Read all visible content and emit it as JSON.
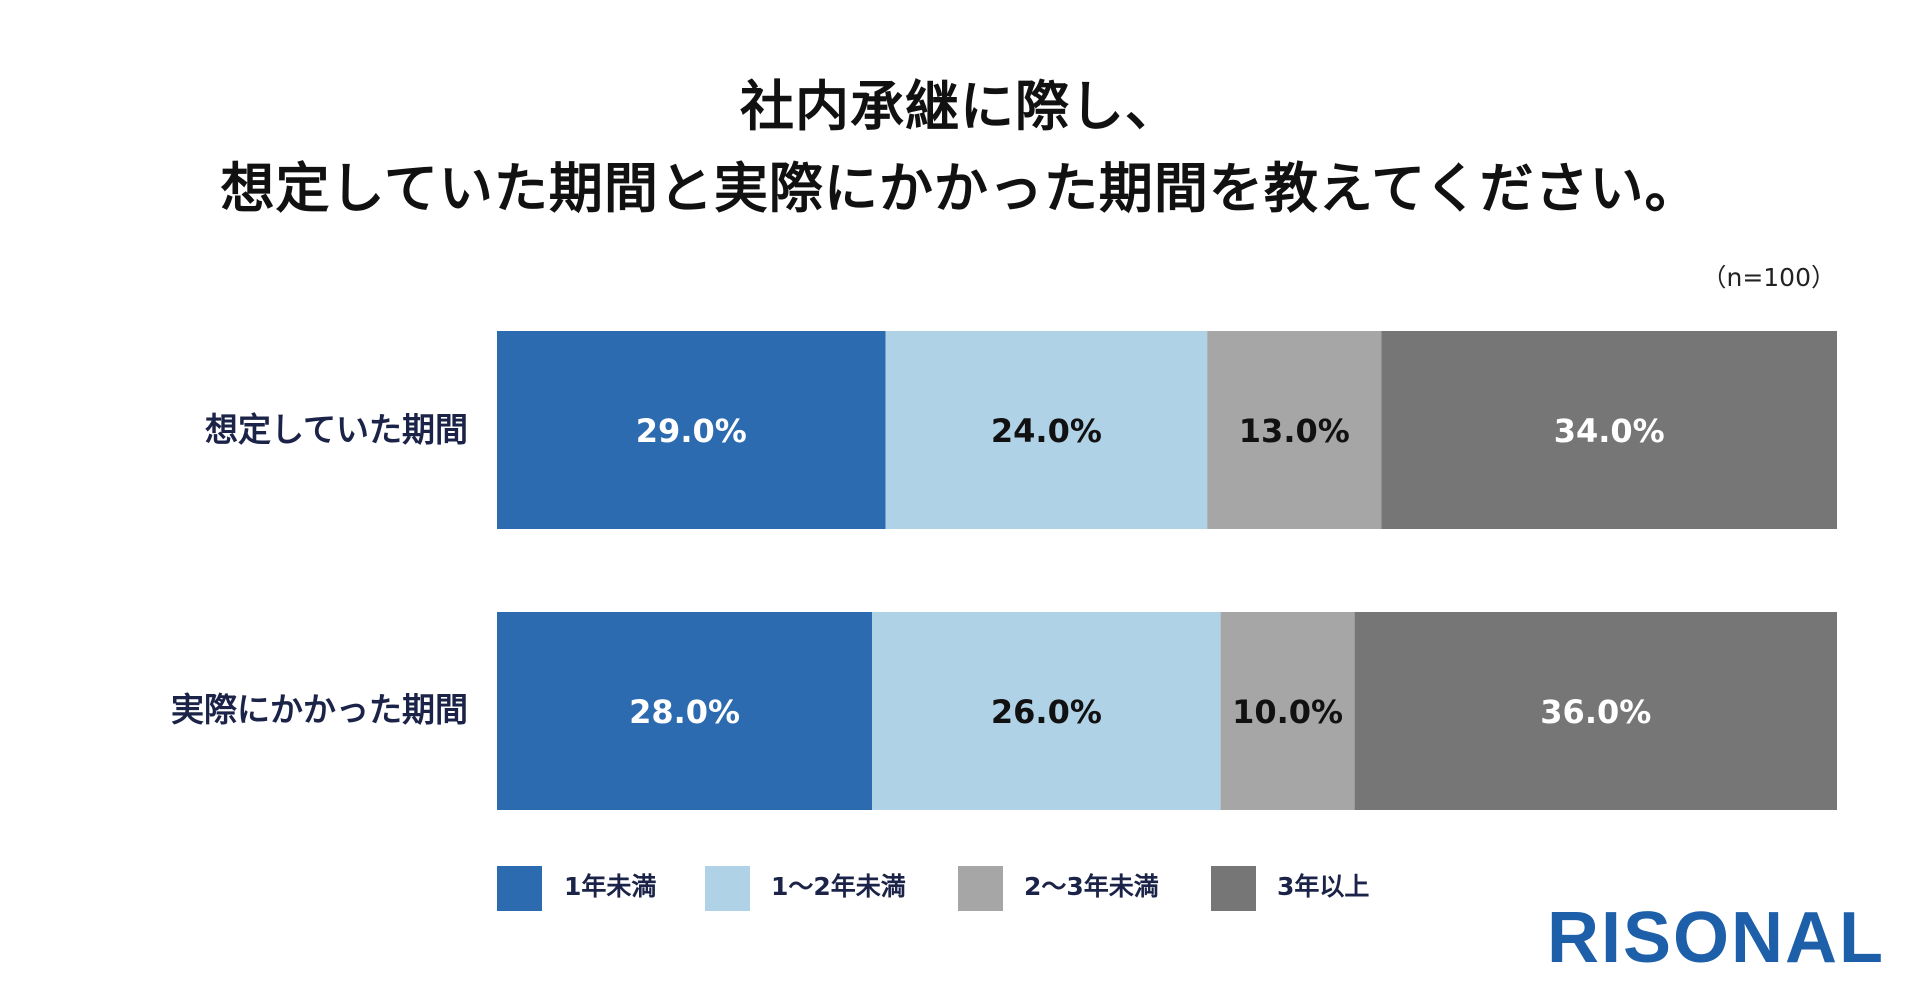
{
  "title_lines": [
    "社内承継に際し、",
    "想定していた期間と実際にかかった期間を教えてください。"
  ],
  "sample_note": "（n=100）",
  "chart_data": {
    "type": "bar",
    "orientation": "horizontal",
    "stacked": true,
    "normalized_100": true,
    "title": "社内承継に際し、想定していた期間と実際にかかった期間を教えてください。",
    "categories": [
      "想定していた期間",
      "実際にかかった期間"
    ],
    "series": [
      {
        "name": "1年未満",
        "values": [
          29.0,
          28.0
        ],
        "labels": [
          "29.0%",
          "28.0%"
        ],
        "color": "#2d6bb1",
        "label_color": "#ffffff"
      },
      {
        "name": "1〜2年未満",
        "values": [
          24.0,
          26.0
        ],
        "labels": [
          "24.0%",
          "26.0%"
        ],
        "color": "#b0d2e6",
        "label_color": "#111111"
      },
      {
        "name": "2〜3年未満",
        "values": [
          13.0,
          10.0
        ],
        "labels": [
          "13.0%",
          "10.0%"
        ],
        "color": "#a6a6a6",
        "label_color": "#111111"
      },
      {
        "name": "3年以上",
        "values": [
          34.0,
          36.0
        ],
        "labels": [
          "34.0%",
          "36.0%"
        ],
        "color": "#767676",
        "label_color": "#ffffff"
      }
    ],
    "xlim": [
      0,
      100
    ],
    "legend_position": "bottom"
  },
  "logo_text": "RISONAL"
}
